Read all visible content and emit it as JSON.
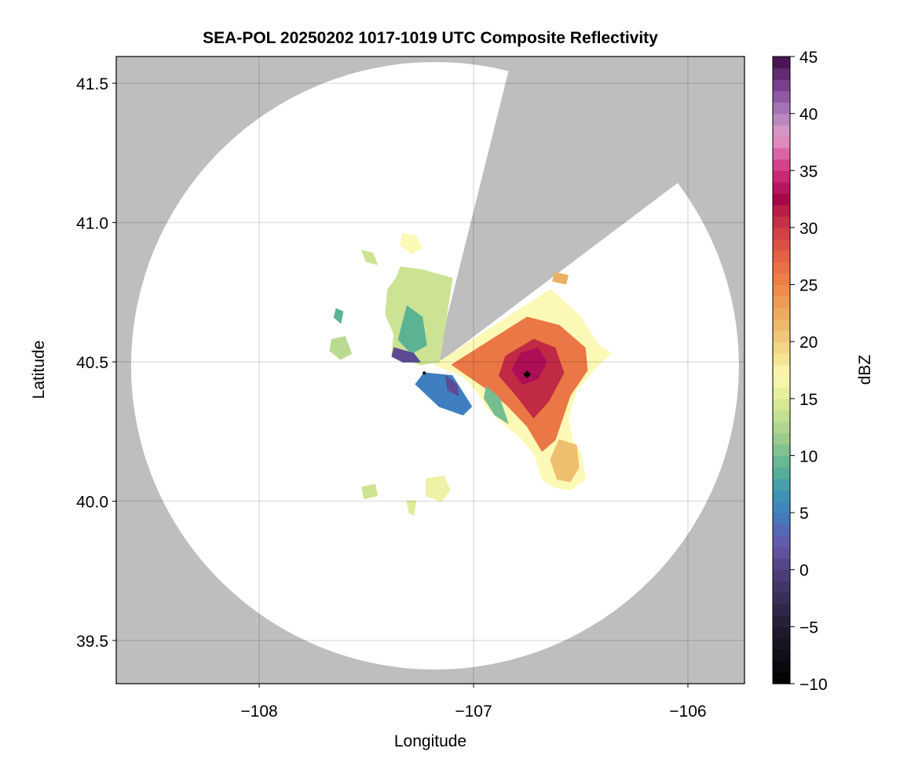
{
  "chart_data": {
    "type": "heatmap",
    "title": "SEA-POL 20250202 1017-1019 UTC Composite Reflectivity",
    "xlabel": "Longitude",
    "ylabel": "Latitude",
    "xlim": [
      -108.667,
      -105.736
    ],
    "ylim": [
      39.345,
      41.596
    ],
    "xticks": [
      -108,
      -107,
      -106
    ],
    "xtick_labels": [
      "−108",
      "−107",
      "−106"
    ],
    "yticks": [
      39.5,
      40.0,
      40.5,
      41.0,
      41.5
    ],
    "ytick_labels": [
      "39.5",
      "40.0",
      "40.5",
      "41.0",
      "41.5"
    ],
    "grid": true,
    "background_color": "#bebebe",
    "coverage_color": "#ffffff",
    "radar": {
      "center": [
        -107.18,
        40.486
      ],
      "max_range_km": 121,
      "blocked_sector_azimuth_deg": [
        14,
        53
      ]
    },
    "markers": [
      {
        "lon": -106.75,
        "lat": 40.455,
        "shape": "diamond",
        "color": "#000000"
      },
      {
        "lon": -107.23,
        "lat": 40.46,
        "shape": "dot",
        "color": "#000000"
      }
    ],
    "echoes": [
      {
        "dbz": 17,
        "poly": [
          [
            -107.18,
            40.49
          ],
          [
            -106.64,
            40.76
          ],
          [
            -106.57,
            40.71
          ],
          [
            -106.5,
            40.66
          ],
          [
            -106.42,
            40.56
          ],
          [
            -106.36,
            40.53
          ],
          [
            -106.43,
            40.48
          ],
          [
            -106.52,
            40.4
          ],
          [
            -106.56,
            40.3
          ],
          [
            -106.54,
            40.22
          ],
          [
            -106.5,
            40.17
          ],
          [
            -106.48,
            40.08
          ],
          [
            -106.55,
            40.04
          ],
          [
            -106.62,
            40.05
          ],
          [
            -106.68,
            40.08
          ],
          [
            -106.71,
            40.16
          ],
          [
            -106.78,
            40.23
          ],
          [
            -106.86,
            40.28
          ],
          [
            -106.93,
            40.33
          ],
          [
            -106.99,
            40.4
          ],
          [
            -107.05,
            40.45
          ]
        ]
      },
      {
        "dbz": 21,
        "poly": [
          [
            -106.6,
            40.22
          ],
          [
            -106.52,
            40.2
          ],
          [
            -106.51,
            40.12
          ],
          [
            -106.55,
            40.07
          ],
          [
            -106.61,
            40.08
          ],
          [
            -106.64,
            40.15
          ]
        ]
      },
      {
        "dbz": 26,
        "poly": [
          [
            -107.1,
            40.49
          ],
          [
            -106.75,
            40.66
          ],
          [
            -106.6,
            40.63
          ],
          [
            -106.48,
            40.55
          ],
          [
            -106.47,
            40.47
          ],
          [
            -106.55,
            40.38
          ],
          [
            -106.62,
            40.22
          ],
          [
            -106.68,
            40.18
          ],
          [
            -106.75,
            40.27
          ],
          [
            -106.85,
            40.35
          ],
          [
            -106.95,
            40.41
          ]
        ]
      },
      {
        "dbz": 31,
        "poly": [
          [
            -106.85,
            40.52
          ],
          [
            -106.72,
            40.58
          ],
          [
            -106.62,
            40.55
          ],
          [
            -106.58,
            40.46
          ],
          [
            -106.65,
            40.36
          ],
          [
            -106.72,
            40.3
          ],
          [
            -106.8,
            40.38
          ],
          [
            -106.88,
            40.45
          ]
        ]
      },
      {
        "dbz": 33,
        "poly": [
          [
            -106.78,
            40.53
          ],
          [
            -106.7,
            40.55
          ],
          [
            -106.66,
            40.5
          ],
          [
            -106.7,
            40.44
          ],
          [
            -106.77,
            40.42
          ],
          [
            -106.82,
            40.47
          ]
        ]
      },
      {
        "dbz": 10,
        "poly": [
          [
            -106.94,
            40.41
          ],
          [
            -106.88,
            40.37
          ],
          [
            -106.84,
            40.28
          ],
          [
            -106.9,
            40.31
          ],
          [
            -106.95,
            40.37
          ]
        ]
      },
      {
        "dbz": 14,
        "poly": [
          [
            -107.34,
            40.84
          ],
          [
            -107.24,
            40.83
          ],
          [
            -107.1,
            40.8
          ],
          [
            -107.16,
            40.5
          ],
          [
            -107.25,
            40.49
          ],
          [
            -107.38,
            40.53
          ],
          [
            -107.37,
            40.6
          ],
          [
            -107.41,
            40.67
          ],
          [
            -107.4,
            40.76
          ],
          [
            -107.36,
            40.8
          ]
        ]
      },
      {
        "dbz": 9,
        "poly": [
          [
            -107.31,
            40.7
          ],
          [
            -107.24,
            40.66
          ],
          [
            -107.22,
            40.56
          ],
          [
            -107.29,
            40.53
          ],
          [
            -107.35,
            40.58
          ]
        ]
      },
      {
        "dbz": 1,
        "poly": [
          [
            -107.37,
            40.55
          ],
          [
            -107.28,
            40.53
          ],
          [
            -107.25,
            40.5
          ],
          [
            -107.33,
            40.5
          ],
          [
            -107.38,
            40.52
          ]
        ]
      },
      {
        "dbz": 5,
        "poly": [
          [
            -107.23,
            40.46
          ],
          [
            -107.1,
            40.45
          ],
          [
            -107.01,
            40.34
          ],
          [
            -107.05,
            40.31
          ],
          [
            -107.16,
            40.34
          ],
          [
            -107.27,
            40.42
          ]
        ]
      },
      {
        "dbz": 1,
        "poly": [
          [
            -107.13,
            40.45
          ],
          [
            -107.08,
            40.42
          ],
          [
            -107.07,
            40.38
          ],
          [
            -107.12,
            40.4
          ]
        ]
      },
      {
        "dbz": 13,
        "poly": [
          [
            -107.66,
            40.58
          ],
          [
            -107.6,
            40.59
          ],
          [
            -107.57,
            40.53
          ],
          [
            -107.62,
            40.51
          ],
          [
            -107.67,
            40.54
          ]
        ]
      },
      {
        "dbz": 9,
        "poly": [
          [
            -107.64,
            40.69
          ],
          [
            -107.61,
            40.68
          ],
          [
            -107.62,
            40.64
          ],
          [
            -107.65,
            40.66
          ]
        ]
      },
      {
        "dbz": 14,
        "poly": [
          [
            -107.52,
            40.9
          ],
          [
            -107.47,
            40.89
          ],
          [
            -107.45,
            40.85
          ],
          [
            -107.5,
            40.86
          ]
        ]
      },
      {
        "dbz": 17,
        "poly": [
          [
            -107.33,
            40.96
          ],
          [
            -107.27,
            40.95
          ],
          [
            -107.24,
            40.91
          ],
          [
            -107.29,
            40.89
          ],
          [
            -107.34,
            40.92
          ]
        ]
      },
      {
        "dbz": 16,
        "poly": [
          [
            -107.22,
            40.08
          ],
          [
            -107.14,
            40.09
          ],
          [
            -107.11,
            40.04
          ],
          [
            -107.15,
            40.0
          ],
          [
            -107.22,
            40.02
          ]
        ]
      },
      {
        "dbz": 14,
        "poly": [
          [
            -107.52,
            40.05
          ],
          [
            -107.46,
            40.06
          ],
          [
            -107.45,
            40.02
          ],
          [
            -107.51,
            40.01
          ]
        ]
      },
      {
        "dbz": 15,
        "poly": [
          [
            -107.31,
            40.0
          ],
          [
            -107.27,
            40.0
          ],
          [
            -107.28,
            39.95
          ],
          [
            -107.3,
            39.96
          ]
        ]
      },
      {
        "dbz": 22,
        "poly": [
          [
            -106.62,
            40.82
          ],
          [
            -106.56,
            40.81
          ],
          [
            -106.57,
            40.78
          ],
          [
            -106.63,
            40.79
          ]
        ]
      }
    ],
    "colorbar": {
      "label": "dBZ",
      "range": [
        -10,
        45
      ],
      "ticks": [
        -10,
        -5,
        0,
        5,
        10,
        15,
        20,
        25,
        30,
        35,
        40,
        45
      ],
      "tick_labels": [
        "−10",
        "−5",
        "0",
        "5",
        "10",
        "15",
        "20",
        "25",
        "30",
        "35",
        "40",
        "45"
      ],
      "colormap": [
        [
          -10,
          "#000000"
        ],
        [
          -5,
          "#231c30"
        ],
        [
          0,
          "#4f3f7f"
        ],
        [
          2,
          "#6a55a8"
        ],
        [
          5,
          "#3f7fbf"
        ],
        [
          7,
          "#3e9ab0"
        ],
        [
          9,
          "#5cb394"
        ],
        [
          12,
          "#a6d28c"
        ],
        [
          15,
          "#dfeb98"
        ],
        [
          17,
          "#fbf9b5"
        ],
        [
          19,
          "#f3de88"
        ],
        [
          22,
          "#ecb063"
        ],
        [
          25,
          "#ef8546"
        ],
        [
          28,
          "#e05a44"
        ],
        [
          31,
          "#c02a45"
        ],
        [
          32.5,
          "#a6064a"
        ],
        [
          35,
          "#d0307f"
        ],
        [
          38,
          "#e49ac8"
        ],
        [
          40,
          "#ac80bf"
        ],
        [
          42,
          "#874a9c"
        ],
        [
          45,
          "#3d0a45"
        ]
      ]
    }
  }
}
